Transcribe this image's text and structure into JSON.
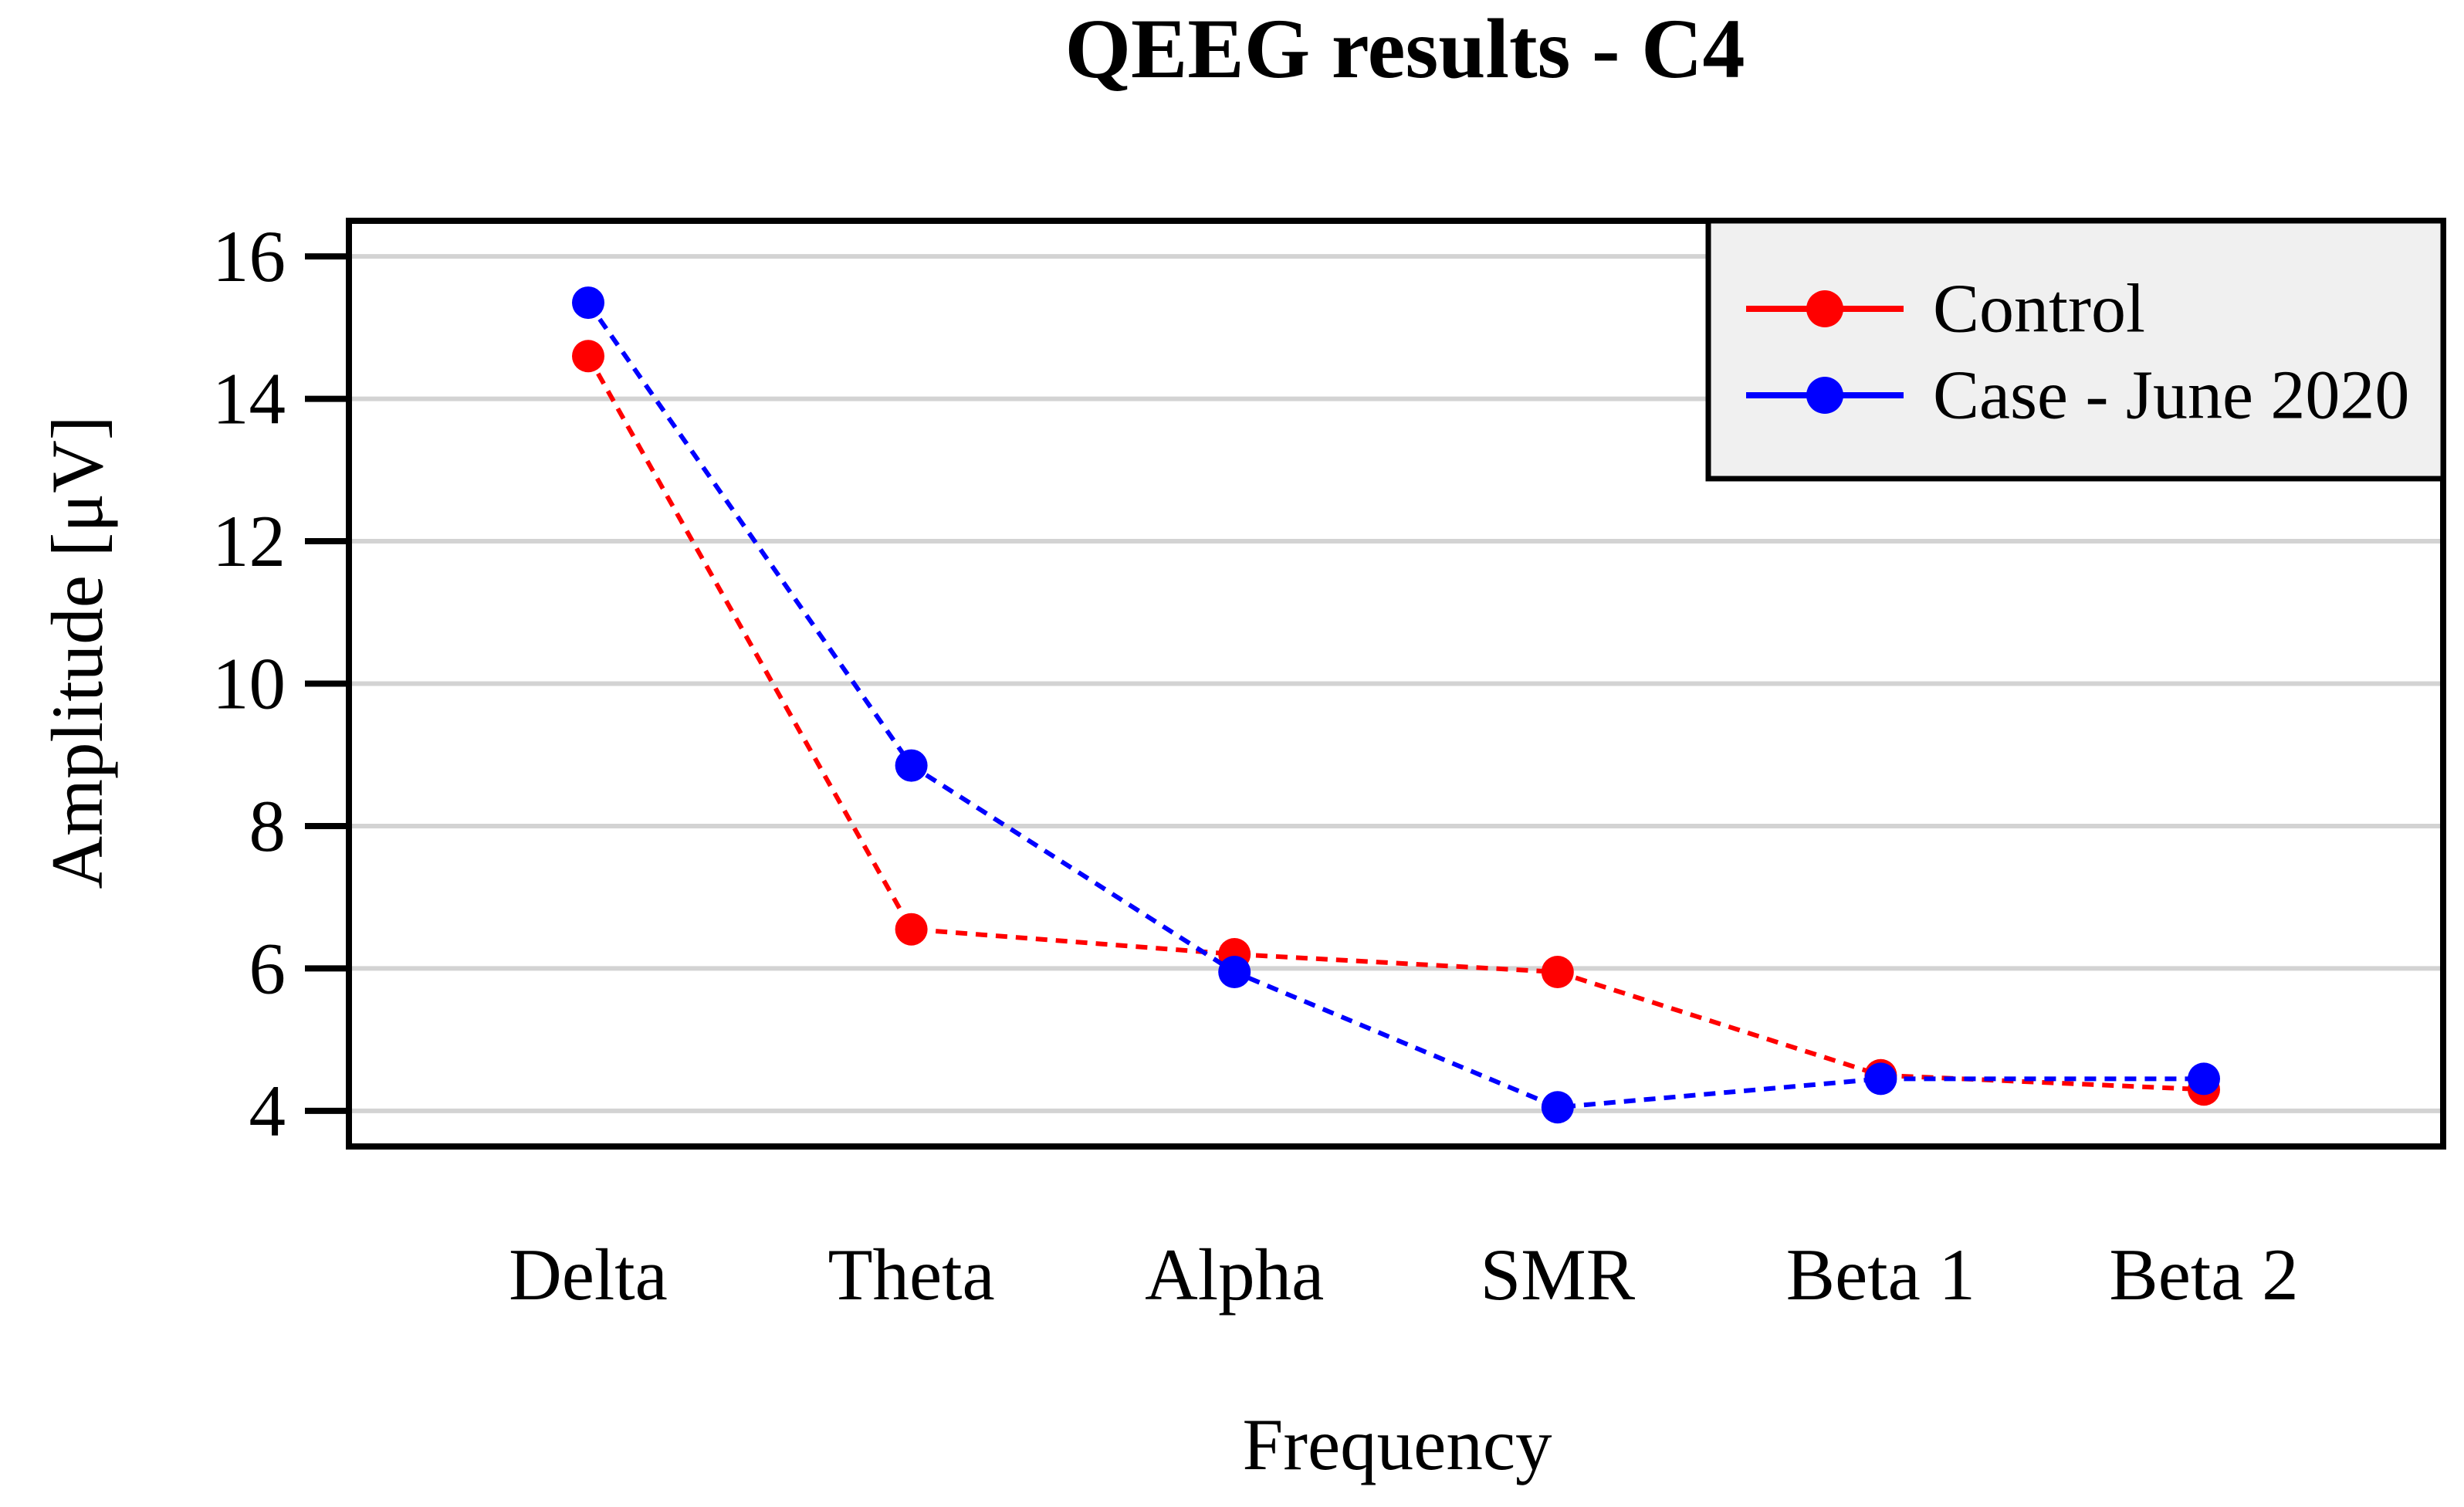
{
  "title": "QEEG results - C4",
  "axes": {
    "y_label": "Amplitude [μV]",
    "x_label": "Frequency",
    "y_ticks": [
      16,
      14,
      12,
      10,
      8,
      6,
      4
    ]
  },
  "colors": {
    "control": "#ff0000",
    "case": "#0000ff",
    "grid": "#d3d3d3",
    "axis": "#000000",
    "legend_bg": "#f0f0f0"
  },
  "legend": {
    "position": "top-right"
  },
  "chart_data": {
    "type": "line",
    "categories": [
      "Delta",
      "Theta",
      "Alpha",
      "SMR",
      "Beta 1",
      "Beta 2"
    ],
    "series": [
      {
        "name": "Control",
        "color": "#ff0000",
        "values": [
          14.6,
          6.55,
          6.2,
          5.95,
          4.5,
          4.3
        ]
      },
      {
        "name": "Case - June 2020",
        "color": "#0000ff",
        "values": [
          15.35,
          8.85,
          5.95,
          4.05,
          4.45,
          4.45
        ]
      }
    ],
    "title": "QEEG results - C4",
    "xlabel": "Frequency",
    "ylabel": "Amplitude [μV]",
    "ylim": [
      3.5,
      16.5
    ],
    "y_ticks": [
      16,
      14,
      12,
      10,
      8,
      6,
      4
    ],
    "grid": "horizontal",
    "line_style": "dashed",
    "marker": "circle",
    "legend_position": "top-right"
  }
}
